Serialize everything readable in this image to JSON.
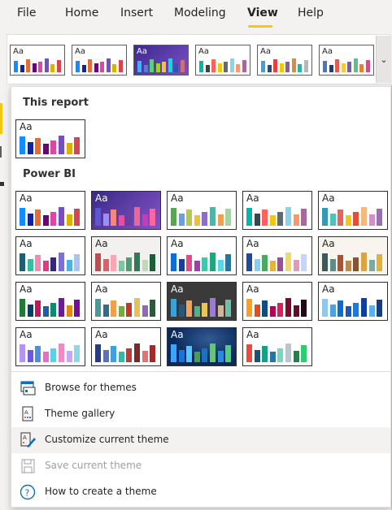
{
  "ribbon": {
    "tabs": [
      {
        "label": "File",
        "active": false
      },
      {
        "label": "Home",
        "active": false
      },
      {
        "label": "Insert",
        "active": false
      },
      {
        "label": "Modeling",
        "active": false
      },
      {
        "label": "View",
        "active": true
      },
      {
        "label": "Help",
        "active": false
      }
    ],
    "accent": "#f2c811",
    "gallery_expand_icon": "chevron-down-icon"
  },
  "gallery_strip": {
    "themes": [
      {
        "sample": "Aa",
        "text_color": "#252423",
        "bg": "#ffffff",
        "colors": [
          "#118dff",
          "#12239e",
          "#e66c37",
          "#6b007b",
          "#e044a7",
          "#744ec2",
          "#d9b300",
          "#d64550"
        ]
      },
      {
        "sample": "Aa",
        "text_color": "#252423",
        "bg": "#ffffff",
        "colors": [
          "#118dff",
          "#12239e",
          "#e66c37",
          "#6b007b",
          "#e044a7",
          "#744ec2",
          "#d9b300",
          "#d64550"
        ]
      },
      {
        "sample": "Aa",
        "text_color": "#ffffff",
        "bg": "linear-gradient(135deg,#3b2a8a,#7b4fc9)",
        "colors": [
          "#31b6fd",
          "#4584d3",
          "#5bd078",
          "#a5d028",
          "#f5c040",
          "#05e0db",
          "#3153ac",
          "#cc6f7a"
        ]
      },
      {
        "sample": "Aa",
        "text_color": "#252423",
        "bg": "#ffffff",
        "colors": [
          "#01b8aa",
          "#374649",
          "#fd625e",
          "#f2c80f",
          "#5f6b6d",
          "#8ad4eb",
          "#fe9666",
          "#a66999"
        ]
      },
      {
        "sample": "Aa",
        "text_color": "#252423",
        "bg": "#ffffff",
        "colors": [
          "#3ea2d6",
          "#1e4f7a",
          "#e5423f",
          "#f2c811",
          "#8c5b9a",
          "#e08a3c",
          "#2db39b",
          "#b8b8b8"
        ]
      },
      {
        "sample": "Aa",
        "text_color": "#252423",
        "bg": "#ffffff",
        "colors": [
          "#4a73c9",
          "#1e3d7b",
          "#e15b4f",
          "#f6c944",
          "#7b5ea7",
          "#5bbf8f",
          "#e4822b",
          "#c94e8a"
        ]
      }
    ]
  },
  "dropdown": {
    "this_report_heading": "This report",
    "power_bi_heading": "Power BI",
    "this_report_theme": {
      "sample": "Aa",
      "text_color": "#252423",
      "bg": "#ffffff",
      "colors": [
        "#118dff",
        "#12239e",
        "#e66c37",
        "#6b007b",
        "#e044a7",
        "#744ec2",
        "#d9b300",
        "#d64550"
      ]
    },
    "themes": [
      {
        "sample": "Aa",
        "text_color": "#252423",
        "bg": "#ffffff",
        "colors": [
          "#118dff",
          "#12239e",
          "#e66c37",
          "#6b007b",
          "#e044a7",
          "#744ec2",
          "#d9b300",
          "#d64550"
        ]
      },
      {
        "sample": "Aa",
        "text_color": "#ffffff",
        "bg": "linear-gradient(135deg,#3a2a86,#8552c9)",
        "colors": [
          "#5b57d3",
          "#9c8dfa",
          "#f7867d",
          "#e4509f",
          "#6b3fa0",
          "#f06494",
          "#c43db6",
          "#ff66a0"
        ]
      },
      {
        "sample": "Aa",
        "text_color": "#252423",
        "bg": "#ffffff",
        "colors": [
          "#5aa454",
          "#6f9fd8",
          "#b6c84f",
          "#f4bc40",
          "#8c6fc5",
          "#4fb4a7",
          "#e8a252",
          "#9fd6a4"
        ]
      },
      {
        "sample": "Aa",
        "text_color": "#252423",
        "bg": "#ffffff",
        "colors": [
          "#01b8aa",
          "#374649",
          "#fd625e",
          "#f2c80f",
          "#5f6b6d",
          "#8ad4eb",
          "#fe9666",
          "#a66999"
        ]
      },
      {
        "sample": "Aa",
        "text_color": "#252423",
        "bg": "#ffffff",
        "colors": [
          "#3599b8",
          "#4ac5bb",
          "#e4655a",
          "#f2c811",
          "#e44e36",
          "#f3b87a",
          "#d28ec9",
          "#9c6cb6"
        ]
      },
      {
        "sample": "Aa",
        "text_color": "#252423",
        "bg": "#ffffff",
        "colors": [
          "#1e5f74",
          "#31bf9f",
          "#f28ab1",
          "#e43a86",
          "#33287c",
          "#7b6fd8",
          "#4fb1e2",
          "#a8c4f5"
        ]
      },
      {
        "sample": "Aa",
        "text_color": "#252423",
        "bg": "#f2f1ef",
        "colors": [
          "#bf4d4f",
          "#e55c67",
          "#f8a6b4",
          "#7ec6a3",
          "#4e9e72",
          "#2f7a57",
          "#c1d9b3",
          "#1b5e3a"
        ]
      },
      {
        "sample": "Aa",
        "text_color": "#252423",
        "bg": "#ffffff",
        "colors": [
          "#0e6fd8",
          "#1b3d9e",
          "#e24a8d",
          "#a638b2",
          "#3fc7a9",
          "#20a67c",
          "#5ad7e2",
          "#1d7aa8"
        ]
      },
      {
        "sample": "Aa",
        "text_color": "#252423",
        "bg": "#ffffff",
        "colors": [
          "#1e4b9a",
          "#7dd3f0",
          "#48a95f",
          "#e5b43d",
          "#9c4d9e",
          "#f2d76c",
          "#e09ab8",
          "#c3d6f5"
        ]
      },
      {
        "sample": "Aa",
        "text_color": "#252423",
        "bg": "#f7f5ee",
        "colors": [
          "#3d5a5b",
          "#5c8d89",
          "#b1502e",
          "#c28945",
          "#87562f",
          "#d9a441",
          "#7fa8a0",
          "#e2b13c"
        ]
      },
      {
        "sample": "Aa",
        "text_color": "#252423",
        "bg": "#ffffff",
        "colors": [
          "#1f7a33",
          "#0a3d5e",
          "#c2185b",
          "#1c5fa8",
          "#0e8a70",
          "#6a1b9a",
          "#e08a12",
          "#7b0a9c"
        ]
      },
      {
        "sample": "Aa",
        "text_color": "#252423",
        "bg": "#ffffff",
        "colors": [
          "#4a9a9a",
          "#2f6d8c",
          "#f0a04b",
          "#7aa844",
          "#c0392b",
          "#e4c25a",
          "#8e6bb8",
          "#2b5a3e"
        ]
      },
      {
        "sample": "Aa",
        "text_color": "#ffffff",
        "bg": "#3a3a3a",
        "colors": [
          "#39a2db",
          "#27587c",
          "#f2a35b",
          "#4fb482",
          "#e7c55a",
          "#9a7cd1",
          "#cdb89c",
          "#6ec0a6"
        ]
      },
      {
        "sample": "Aa",
        "text_color": "#252423",
        "bg": "#ffffff",
        "colors": [
          "#ff9f1c",
          "#e84a1c",
          "#0f4c81",
          "#b30059",
          "#d9225a",
          "#7d0a2f",
          "#5e0f2e",
          "#1c0a1a"
        ]
      },
      {
        "sample": "Aa",
        "text_color": "#252423",
        "bg": "#ffffff",
        "colors": [
          "#8fc8ef",
          "#4aa2e2",
          "#0a6ed1",
          "#1b57b3",
          "#1f7ad6",
          "#0f3e9e",
          "#5ab0e8",
          "#123d8a"
        ]
      },
      {
        "sample": "Aa",
        "text_color": "#252423",
        "bg": "#ffffff",
        "colors": [
          "#b593f0",
          "#6b5ad9",
          "#4c8fe0",
          "#e46fc5",
          "#5ad1e9",
          "#f08ac0",
          "#c7a6f2",
          "#8ad7f0"
        ]
      },
      {
        "sample": "Aa",
        "text_color": "#252423",
        "bg": "#ffffff",
        "colors": [
          "#233c8e",
          "#5e6fbe",
          "#3da0e0",
          "#38b5a8",
          "#bf3b3b",
          "#7a2a2a",
          "#e57272",
          "#a02c2c"
        ]
      },
      {
        "sample": "Aa",
        "text_color": "#ffffff",
        "bg": "#0b2a5a",
        "colors": [
          "#3fa2ff",
          "#1a73d9",
          "#56c6ff",
          "#4aa04a",
          "#1f6fbf",
          "#68c47a",
          "#2b8ae0",
          "#49d17f"
        ]
      },
      {
        "sample": "Aa",
        "text_color": "#252423",
        "bg": "#ffffff",
        "colors": [
          "#e74c3c",
          "#1a5276",
          "#16a085",
          "#2874a6",
          "#76d7c4",
          "#b9c7cc",
          "#1e8449",
          "#2ecc71"
        ]
      }
    ],
    "menu": [
      {
        "label": "Browse for themes",
        "icon": "browse-folder-icon",
        "disabled": false,
        "hovered": false
      },
      {
        "label": "Theme gallery",
        "icon": "theme-gallery-icon",
        "disabled": false,
        "hovered": false
      },
      {
        "label": "Customize current theme",
        "icon": "customize-theme-icon",
        "disabled": false,
        "hovered": true
      },
      {
        "label": "Save current theme",
        "icon": "save-icon",
        "disabled": true,
        "hovered": false
      },
      {
        "label": "How to create a theme",
        "icon": "help-icon",
        "disabled": false,
        "hovered": false
      }
    ]
  }
}
